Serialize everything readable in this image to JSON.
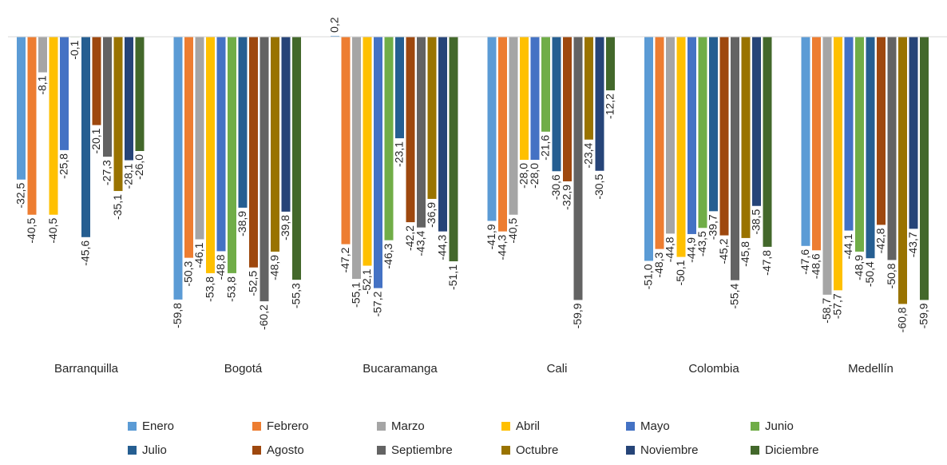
{
  "chart_data": {
    "type": "bar",
    "categories": [
      "Barranquilla",
      "Bogotá",
      "Bucaramanga",
      "Cali",
      "Colombia",
      "Medellín"
    ],
    "series": [
      {
        "name": "Enero",
        "color": "#5B9BD5",
        "values": [
          -32.5,
          -59.8,
          0.2,
          -41.9,
          -51.0,
          -47.6
        ],
        "labels": [
          "-32,5",
          "-59,8",
          "0,2",
          "-41,9",
          "-51,0",
          "-47,6"
        ]
      },
      {
        "name": "Febrero",
        "color": "#ED7D31",
        "values": [
          -40.5,
          -50.3,
          -47.2,
          -44.3,
          -48.3,
          -48.6
        ],
        "labels": [
          "-40,5",
          "-50,3",
          "-47,2",
          "-44,3",
          "-48,3",
          "-48,6"
        ]
      },
      {
        "name": "Marzo",
        "color": "#A5A5A5",
        "values": [
          -8.1,
          -46.1,
          -55.1,
          -40.5,
          -44.8,
          -58.7
        ],
        "labels": [
          "-8,1",
          "-46,1",
          "-55,1",
          "-40,5",
          "-44,8",
          "-58,7"
        ]
      },
      {
        "name": "Abril",
        "color": "#FFC000",
        "values": [
          -40.5,
          -53.8,
          -52.1,
          -28.0,
          -50.1,
          -57.7
        ],
        "labels": [
          "-40,5",
          "-53,8",
          "-52,1",
          "-28,0",
          "-50,1",
          "-57,7"
        ]
      },
      {
        "name": "Mayo",
        "color": "#4472C4",
        "values": [
          -25.8,
          -48.8,
          -57.2,
          -28.0,
          -44.9,
          -44.1
        ],
        "labels": [
          "-25,8",
          "-48,8",
          "-57,2",
          "-28,0",
          "-44,9",
          "-44,1"
        ]
      },
      {
        "name": "Junio",
        "color": "#70AD47",
        "values": [
          -0.1,
          -53.8,
          -46.3,
          -21.6,
          -43.5,
          -48.9
        ],
        "labels": [
          "-0,1",
          "-53,8",
          "-46,3",
          "-21,6",
          "-43,5",
          "-48,9"
        ]
      },
      {
        "name": "Julio",
        "color": "#255E91",
        "values": [
          -45.6,
          -38.9,
          -23.1,
          -30.6,
          -39.7,
          -50.4
        ],
        "labels": [
          "-45,6",
          "-38,9",
          "-23,1",
          "-30,6",
          "-39,7",
          "-50,4"
        ]
      },
      {
        "name": "Agosto",
        "color": "#9E480E",
        "values": [
          -20.1,
          -52.5,
          -42.2,
          -32.9,
          -45.2,
          -42.8
        ],
        "labels": [
          "-20,1",
          "-52,5",
          "-42,2",
          "-32,9",
          "-45,2",
          "-42,8"
        ]
      },
      {
        "name": "Septiembre",
        "color": "#636363",
        "values": [
          -27.3,
          -60.2,
          -43.4,
          -59.9,
          -55.4,
          -50.8
        ],
        "labels": [
          "-27,3",
          "-60,2",
          "-43,4",
          "-59,9",
          "-55,4",
          "-50,8"
        ]
      },
      {
        "name": "Octubre",
        "color": "#997300",
        "values": [
          -35.1,
          -48.9,
          -36.9,
          -23.4,
          -45.8,
          -60.8
        ],
        "labels": [
          "-35,1",
          "-48,9",
          "-36,9",
          "-23,4",
          "-45,8",
          "-60,8"
        ]
      },
      {
        "name": "Noviembre",
        "color": "#264478",
        "values": [
          -28.1,
          -39.8,
          -44.3,
          -30.5,
          -38.5,
          -43.7
        ],
        "labels": [
          "-28,1",
          "-39,8",
          "-44,3",
          "-30,5",
          "-38,5",
          "-43,7"
        ]
      },
      {
        "name": "Diciembre",
        "color": "#43682B",
        "values": [
          -26.0,
          -55.3,
          -51.1,
          -12.2,
          -47.8,
          -59.9
        ],
        "labels": [
          "-26,0",
          "-55,3",
          "-51,1",
          "-12,2",
          "-47,8",
          "-59,9"
        ]
      }
    ],
    "title": "",
    "xlabel": "",
    "ylabel": "",
    "ylim": [
      -62,
      2
    ],
    "grid": false,
    "legend_position": "bottom"
  }
}
